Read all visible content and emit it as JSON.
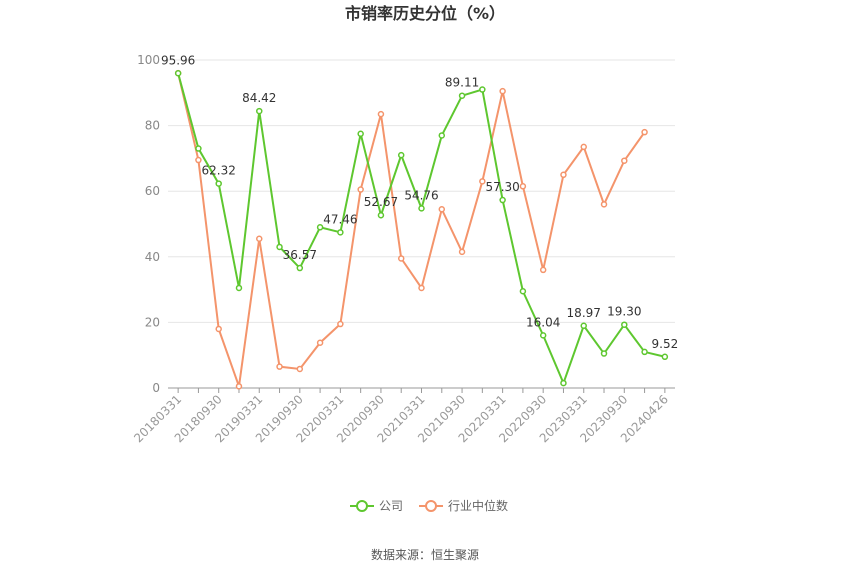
{
  "chart_data": {
    "type": "line",
    "title": "市销率历史分位（%）",
    "categories": [
      "20180331",
      null,
      "20180930",
      null,
      "20190331",
      null,
      "20190930",
      null,
      "20200331",
      null,
      "20200930",
      null,
      "20210331",
      null,
      "20210930",
      null,
      "20220331",
      null,
      "20220930",
      null,
      "20230331",
      null,
      "20230930",
      null,
      "20240426"
    ],
    "series": [
      {
        "name": "公司",
        "color": "#5ec72f",
        "values": [
          95.96,
          73,
          62.32,
          30.5,
          84.42,
          43,
          36.57,
          49,
          47.46,
          77.5,
          52.67,
          71,
          54.76,
          77,
          89.11,
          91,
          57.3,
          29.5,
          16.04,
          1.5,
          18.97,
          10.5,
          19.3,
          11,
          9.52
        ],
        "value_labels": [
          "95.96",
          null,
          "62.32",
          null,
          "84.42",
          null,
          "36.57",
          null,
          "47.46",
          null,
          "52.67",
          null,
          "54.76",
          null,
          "89.11",
          null,
          "57.30",
          null,
          "16.04",
          null,
          "18.97",
          null,
          "19.30",
          null,
          "9.52"
        ]
      },
      {
        "name": "行业中位数",
        "color": "#f4946b",
        "values": [
          96,
          69.5,
          18,
          0.5,
          45.5,
          6.5,
          5.8,
          13.8,
          19.5,
          60.5,
          83.5,
          39.5,
          30.5,
          54.5,
          41.5,
          63,
          90.5,
          61.5,
          36,
          65,
          73.5,
          56,
          69.3,
          78,
          null
        ]
      }
    ],
    "ylim": [
      0,
      100
    ],
    "yticks": [
      0,
      20,
      40,
      60,
      80,
      100
    ],
    "grid": true,
    "legend": "bottom",
    "source": "数据来源：恒生聚源"
  }
}
